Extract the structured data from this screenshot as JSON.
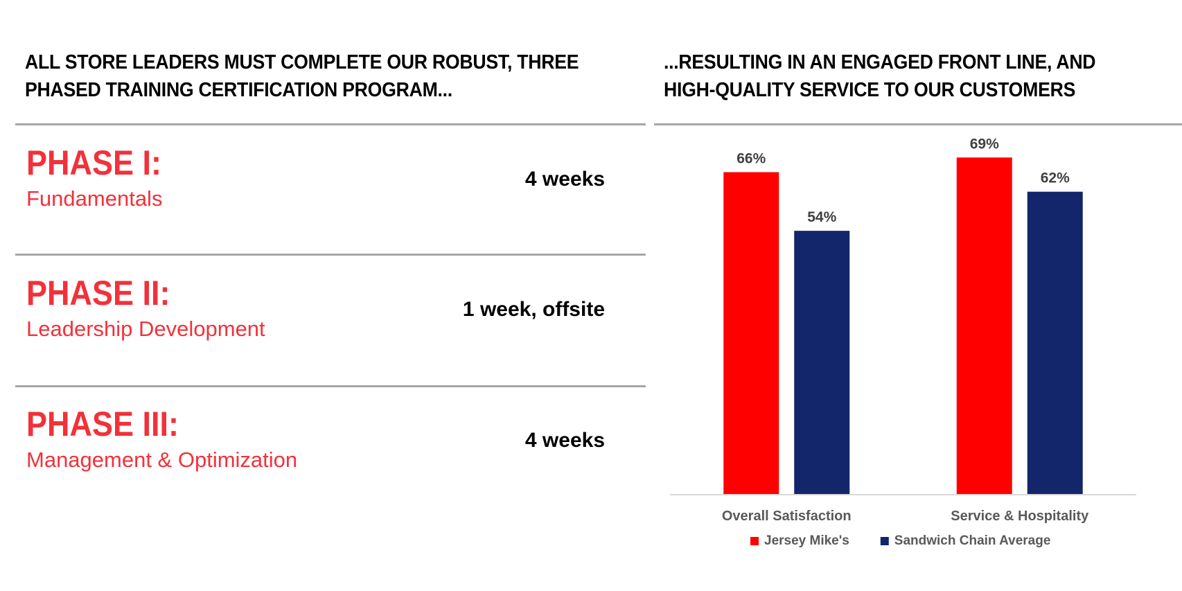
{
  "left": {
    "heading_line1": "ALL STORE LEADERS MUST COMPLETE OUR ROBUST, THREE",
    "heading_line2": "PHASED TRAINING CERTIFICATION PROGRAM...",
    "phases": [
      {
        "title": "PHASE I:",
        "subtitle": "Fundamentals",
        "duration": "4 weeks"
      },
      {
        "title": "PHASE II:",
        "subtitle": "Leadership Development",
        "duration": "1 week, offsite"
      },
      {
        "title": "PHASE III:",
        "subtitle": "Management & Optimization",
        "duration": "4 weeks"
      }
    ]
  },
  "right": {
    "heading_line1": "...RESULTING IN AN ENGAGED FRONT LINE, AND",
    "heading_line2": "HIGH-QUALITY SERVICE TO OUR CUSTOMERS"
  },
  "colors": {
    "accent_red": "#f2313a",
    "bar_red": "#ff0000",
    "bar_navy": "#13266b",
    "rule_gray": "#a6a6a6"
  },
  "chart_data": {
    "type": "bar",
    "categories": [
      "Overall Satisfaction",
      "Service & Hospitality"
    ],
    "series": [
      {
        "name": "Jersey Mike's",
        "values": [
          66,
          69
        ],
        "labels": [
          "66%",
          "69%"
        ],
        "color": "#ff0000"
      },
      {
        "name": "Sandwich Chain Average",
        "values": [
          54,
          62
        ],
        "labels": [
          "54%",
          "62%"
        ],
        "color": "#13266b"
      }
    ],
    "unit": "%",
    "ylim": [
      0,
      75
    ],
    "grid": false,
    "legend": "bottom-center"
  }
}
